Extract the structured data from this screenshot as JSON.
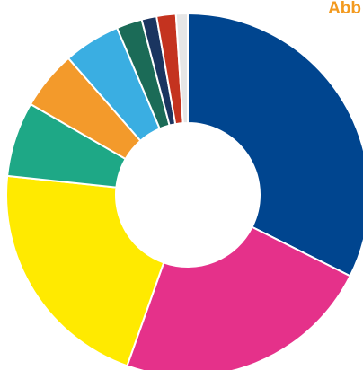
{
  "header": {
    "corner_label": "Abb"
  },
  "chart_data": {
    "type": "pie",
    "title": "",
    "donut": true,
    "start_angle_deg": 0,
    "direction": "clockwise",
    "slices": [
      {
        "value": 34.0,
        "color": "#00458f"
      },
      {
        "value": 24.2,
        "color": "#e5318a"
      },
      {
        "value": 22.3,
        "color": "#ffea00"
      },
      {
        "value": 7.0,
        "color": "#1ea886"
      },
      {
        "value": 5.5,
        "color": "#f39a2b"
      },
      {
        "value": 5.3,
        "color": "#3aaee2"
      },
      {
        "value": 2.4,
        "color": "#1b6b57"
      },
      {
        "value": 1.4,
        "color": "#1a3560"
      },
      {
        "value": 1.8,
        "color": "#c4331f"
      },
      {
        "value": 1.1,
        "color": "#e6e6e6"
      }
    ]
  }
}
